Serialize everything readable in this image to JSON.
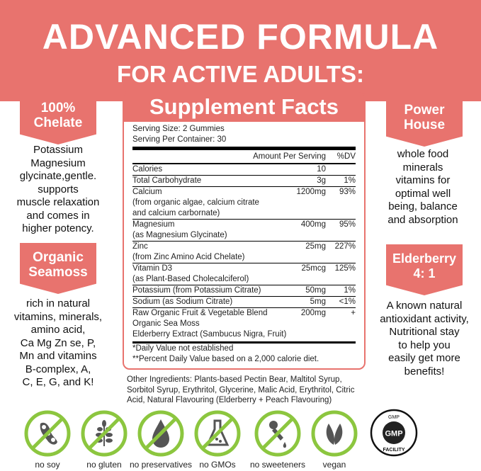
{
  "banner": {
    "title": "ADVANCED FORMULA",
    "subtitle": "FOR ACTIVE ADULTS:",
    "color": "#e8736e"
  },
  "left": [
    {
      "badge_line1": "100%",
      "badge_line2": "Chelate",
      "lines": [
        "Potassium",
        "Magnesium",
        "glycinate,gentle.",
        "supports",
        "muscle relaxation",
        "and comes in",
        "higher potency."
      ]
    },
    {
      "badge_line1": "Organic",
      "badge_line2": "Seamoss",
      "lines": [
        "rich in natural",
        "vitamins, minerals,",
        "amino acid,",
        "Ca Mg Zn se, P,",
        "Mn and vitamins",
        "B-complex, A,",
        "C, E, G, and K!"
      ]
    }
  ],
  "right": [
    {
      "badge_line1": "Power",
      "badge_line2": "House",
      "lines": [
        "whole food",
        "minerals",
        "vitamins for",
        "optimal well",
        "being, balance",
        "and absorption"
      ]
    },
    {
      "badge_line1": "Elderberry",
      "badge_line2": "4: 1",
      "lines": [
        "A known natural",
        "antioxidant activity,",
        "Nutritional stay",
        "to help you",
        "easily get more",
        "benefits!"
      ]
    }
  ],
  "facts": {
    "title": "Supplement Facts",
    "serving_size": "Serving Size: 2 Gummies",
    "servings": "Serving Per Container: 30",
    "col_amount": "Amount Per Serving",
    "col_dv": "%DV",
    "rows": [
      {
        "lines": [
          "Calories"
        ],
        "amount": "10",
        "dv": ""
      },
      {
        "lines": [
          "Total Carbohydrate"
        ],
        "amount": "3g",
        "dv": "1%"
      },
      {
        "lines": [
          "Calcium",
          "(from organic algae, calcium citrate",
          "and calcium carbornate)"
        ],
        "amount": "1200mg",
        "dv": "93%"
      },
      {
        "lines": [
          "Magnesium",
          "(as Magnesium Glycinate)"
        ],
        "amount": "400mg",
        "dv": "95%"
      },
      {
        "lines": [
          "Zinc",
          "(from Zinc Amino Acid Chelate)"
        ],
        "amount": "25mg",
        "dv": "227%"
      },
      {
        "lines": [
          "Vitamin D3",
          "(as Plant-Based Cholecalciferol)"
        ],
        "amount": "25mcg",
        "dv": "125%"
      },
      {
        "lines": [
          "Potassium (from Potassium Citrate)"
        ],
        "amount": "50mg",
        "dv": "1%"
      },
      {
        "lines": [
          "Sodium (as Sodium Citrate)"
        ],
        "amount": "5mg",
        "dv": "<1%"
      },
      {
        "lines": [
          "Raw Organic Fruit & Vegetable Blend",
          "Organic Sea Moss",
          "Elderberry Extract (Sambucus Nigra, Fruit)"
        ],
        "amount": "200mg",
        "dv": "+"
      }
    ],
    "footnote1": "*Daily Value not established",
    "footnote2": "**Percent Daily Value based on a 2,000 calorie diet."
  },
  "other_ingredients": {
    "label": "Other Ingredients:",
    "text": " Plants-based Pectin Bear, Maltitol Syrup, Sorbitol Syrup, Erythritol, Glycerine, Malic Acid, Erythritol, Citric Acid, Natural Flavouring (Elderberry + Peach Flavouring)"
  },
  "icons": [
    {
      "icon": "soy-icon",
      "label": "no soy"
    },
    {
      "icon": "wheat-icon",
      "label": "no gluten"
    },
    {
      "icon": "drop-icon",
      "label": "no preservatives"
    },
    {
      "icon": "flask-icon",
      "label": "no GMOs"
    },
    {
      "icon": "dropper-icon",
      "label": "no sweeteners"
    },
    {
      "icon": "leaf-icon",
      "label": "vegan"
    }
  ],
  "gmp": {
    "top": "GMP",
    "center": "GMP",
    "bottom": "FACILITY"
  },
  "icon_green": "#8cc63f"
}
